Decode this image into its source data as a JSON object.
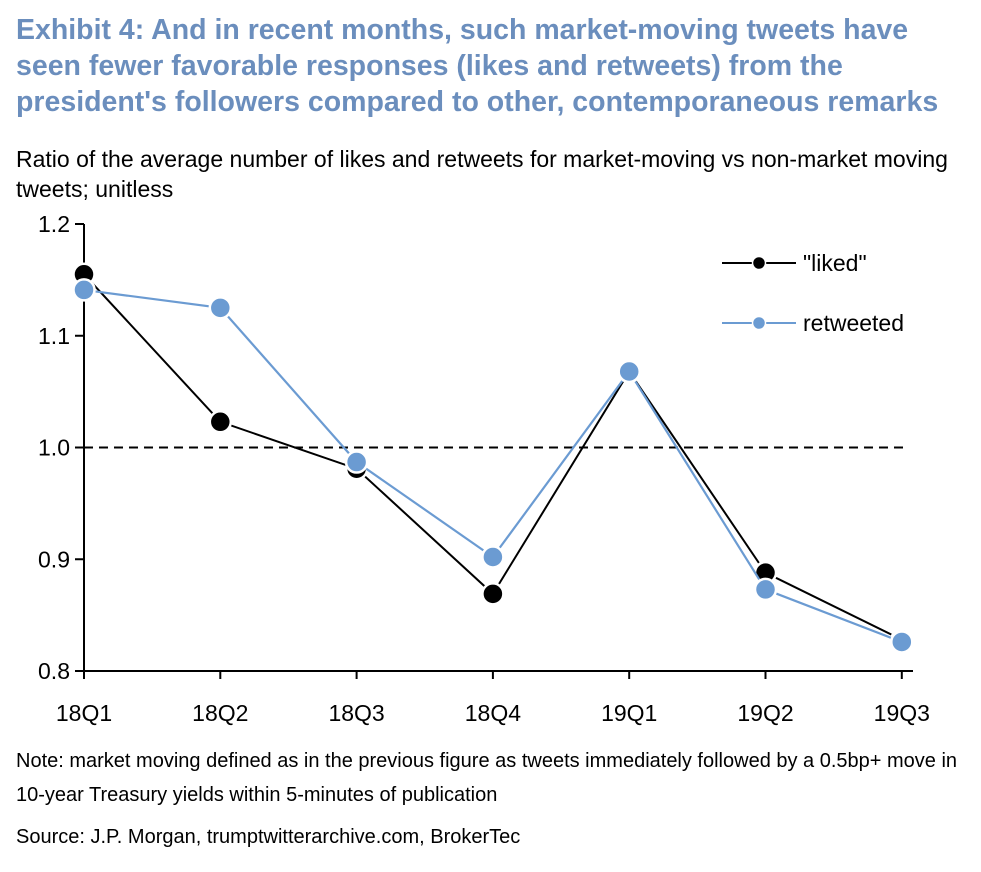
{
  "header": {
    "title": "Exhibit 4: And in recent months, such market-moving tweets have seen fewer favorable responses (likes and retweets) from the president's followers compared to other, contemporaneous remarks",
    "subtitle": "Ratio of the average number of likes and retweets for market-moving vs non-market moving tweets; unitless"
  },
  "footer": {
    "note": "Note: market moving defined as in the previous figure as tweets immediately followed by a 0.5bp+ move in 10-year Treasury yields within 5-minutes of publication",
    "source": "Source: J.P. Morgan, trumptwitterarchive.com, BrokerTec"
  },
  "chart_data": {
    "type": "line",
    "title": "Exhibit 4: And in recent months, such market-moving tweets have seen fewer favorable responses (likes and retweets) from the president's followers compared to other, contemporaneous remarks",
    "xlabel": "",
    "ylabel": "Ratio of the average number of likes and retweets for market-moving vs non-market moving tweets; unitless",
    "categories": [
      "18Q1",
      "18Q2",
      "18Q3",
      "18Q4",
      "19Q1",
      "19Q2",
      "19Q3"
    ],
    "ylim": [
      0.8,
      1.2
    ],
    "yticks": [
      "0.8",
      "0.9",
      "1.0",
      "1.1",
      "1.2"
    ],
    "reference_line": {
      "value": 1.0,
      "style": "dashed"
    },
    "legend_position": "top-right",
    "series": [
      {
        "name": "\"liked\"",
        "color": "#000000",
        "values": [
          1.155,
          1.023,
          0.981,
          0.869,
          1.068,
          0.888,
          0.828
        ]
      },
      {
        "name": "retweeted",
        "color": "#6b9bd2",
        "values": [
          1.141,
          1.125,
          0.987,
          0.902,
          1.068,
          0.873,
          0.826
        ]
      }
    ]
  }
}
